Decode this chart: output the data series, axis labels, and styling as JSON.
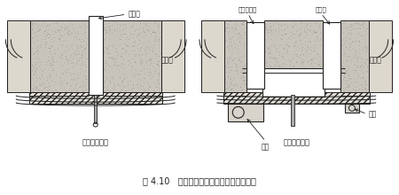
{
  "title": "图 4.10   电炉炉底吹气搅拌系统用耐火材料",
  "left_label": "直接搅拌系统",
  "right_label": "间接搅拌系统",
  "label_touqi_zhuan": "透气砖",
  "label_dao_da_liao": "捣打料",
  "label_touqi_dao_da_liao": "透气捣打料",
  "label_di_pan": "底盘",
  "label_tao_zhuan": "套砖",
  "bg_color": "#ffffff",
  "stipple_color": "#c8c4bc",
  "line_color": "#222222",
  "white_color": "#ffffff",
  "hatch_color": "#e0dcd4",
  "figure_bg": "#ffffff"
}
